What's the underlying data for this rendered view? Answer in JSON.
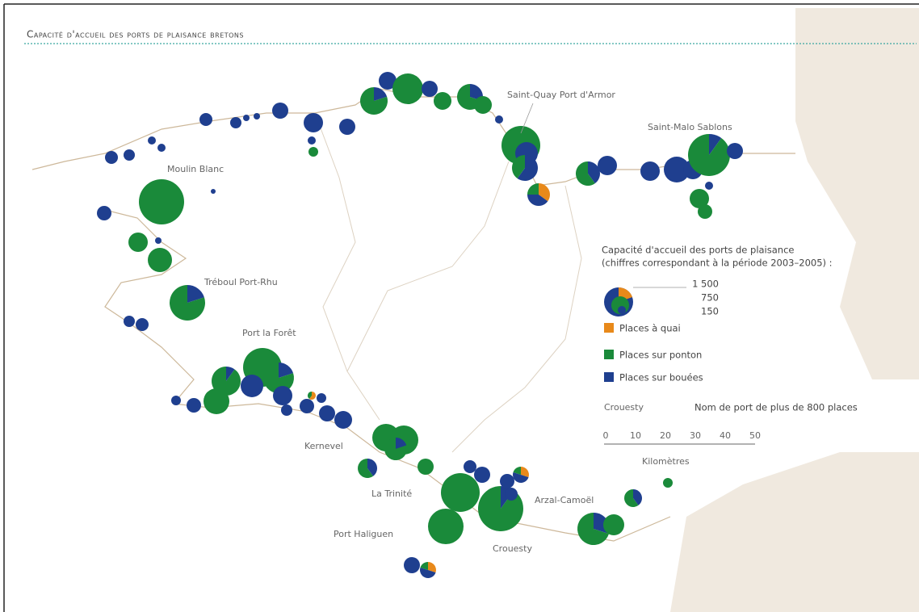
{
  "title": "Capacité d'accueil des ports de plaisance bretons",
  "ports": [
    "Saint-Quay Port d'Armor",
    "Saint-Malo Sablons",
    "Moulin Blanc",
    "Tréboul Port-Rhu",
    "Port la Forêt",
    "Kernevel",
    "La Trinité",
    "Port Haliguen",
    "Crouesty",
    "Arzal-Camoël"
  ],
  "legend": {
    "title": "Capacité d'accueil des ports de plaisance",
    "subtitle": "(chiffres correspondant à la période 2003–2005) :",
    "sizes": [
      "1 500",
      "750",
      "150"
    ],
    "items": [
      "Places à quai",
      "Places sur ponton",
      "Places sur bouées"
    ],
    "name_example": "Crouesty",
    "name_note": "Nom de port de plus de 800 places",
    "scale_ticks": [
      "0",
      "10",
      "20",
      "30",
      "40",
      "50"
    ],
    "scale_unit": "Kilomètres"
  }
}
